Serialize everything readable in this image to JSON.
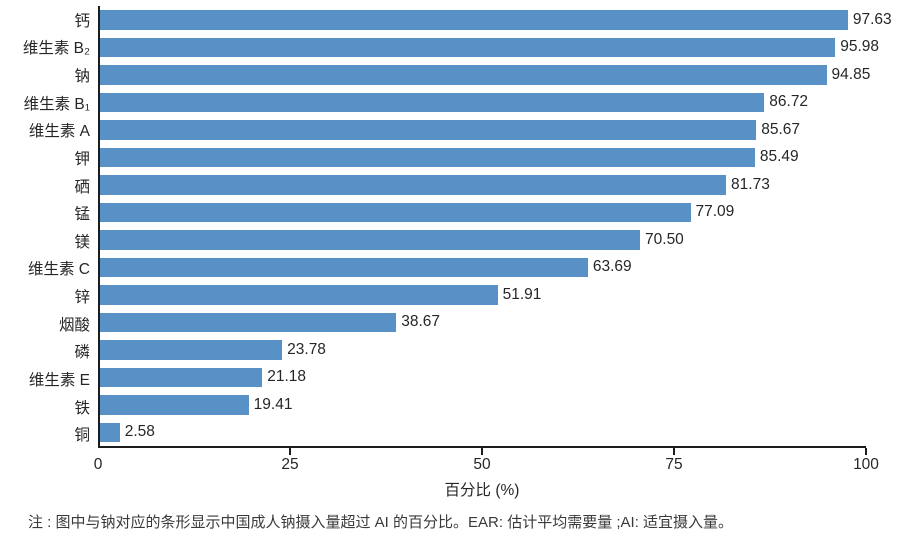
{
  "chart_data": {
    "type": "bar",
    "orientation": "horizontal",
    "categories": [
      "钙",
      "维生素 B₂",
      "钠",
      "维生素 B₁",
      "维生素 A",
      "钾",
      "硒",
      "锰",
      "镁",
      "维生素 C",
      "锌",
      "烟酸",
      "磷",
      "维生素 E",
      "铁",
      "铜"
    ],
    "values": [
      97.63,
      95.98,
      94.85,
      86.72,
      85.67,
      85.49,
      81.73,
      77.09,
      70.5,
      63.69,
      51.91,
      38.67,
      23.78,
      21.18,
      19.41,
      2.58
    ],
    "value_labels": [
      "97.63",
      "95.98",
      "94.85",
      "86.72",
      "85.67",
      "85.49",
      "81.73",
      "77.09",
      "70.50",
      "63.69",
      "51.91",
      "38.67",
      "23.78",
      "21.18",
      "19.41",
      "2.58"
    ],
    "title": "",
    "xlabel": "百分比 (%)",
    "ylabel": "",
    "xlim": [
      0,
      100
    ],
    "xticks": [
      0,
      25,
      50,
      75,
      100
    ],
    "bar_color": "#5791C6",
    "axis_color": "#1c1c1c",
    "grid": false,
    "legend": false
  },
  "footnote": "注 : 图中与钠对应的条形显示中国成人钠摄入量超过 AI 的百分比。EAR: 估计平均需要量 ;AI: 适宜摄入量。"
}
